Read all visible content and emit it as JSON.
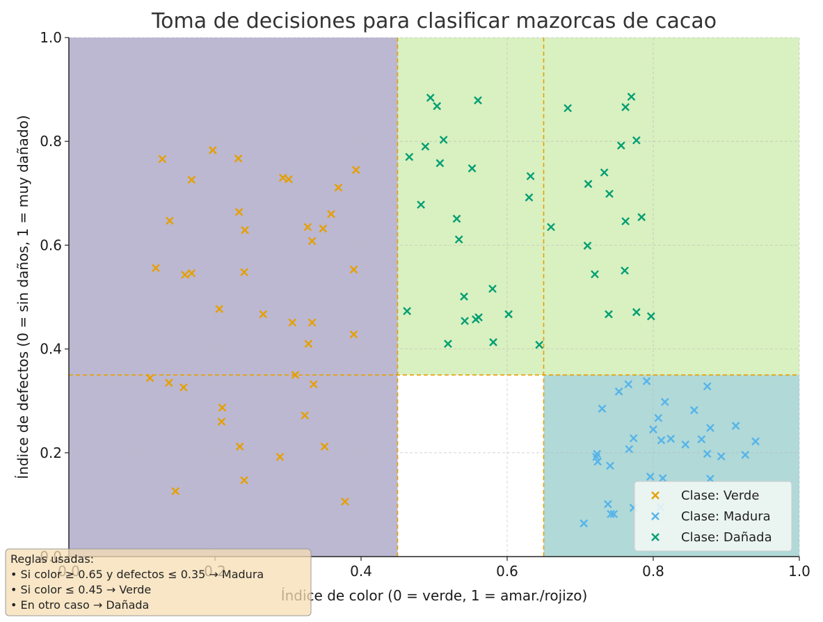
{
  "chart_data": {
    "type": "scatter",
    "title": "Toma de decisiones para clasificar mazorcas de cacao",
    "xlabel": "Índice de color (0 = verde, 1 = amar./rojizo)",
    "ylabel": "Índice de defectos (0 = sin daños, 1 = muy dañado)",
    "xlim": [
      0,
      1
    ],
    "ylim": [
      0,
      1
    ],
    "xticks": [
      "0.0",
      "0.2",
      "0.4",
      "0.6",
      "0.8",
      "1.0"
    ],
    "yticks": [
      "0.0",
      "0.2",
      "0.4",
      "0.6",
      "0.8",
      "1.0"
    ],
    "grid": true,
    "legend_position": "bottom-right",
    "thresholds": {
      "color_verde": 0.45,
      "color_madura": 0.65,
      "defectos": 0.35
    },
    "regions": [
      {
        "name": "Verde",
        "x": [
          0,
          0.45
        ],
        "y": [
          0,
          1
        ],
        "color": "#bcb8d2"
      },
      {
        "name": "Dañada",
        "x": [
          0.45,
          1
        ],
        "y": [
          0.35,
          1
        ],
        "color": "#d9f0c0"
      },
      {
        "name": "Madura",
        "x": [
          0.65,
          1
        ],
        "y": [
          0,
          0.35
        ],
        "color": "#b0d9d8"
      }
    ],
    "series": [
      {
        "name": "Clase: Verde",
        "color": "#e69f00",
        "marker": "x",
        "points": [
          [
            0.128,
            0.766
          ],
          [
            0.197,
            0.783
          ],
          [
            0.232,
            0.767
          ],
          [
            0.168,
            0.726
          ],
          [
            0.293,
            0.73
          ],
          [
            0.301,
            0.727
          ],
          [
            0.393,
            0.745
          ],
          [
            0.369,
            0.711
          ],
          [
            0.138,
            0.647
          ],
          [
            0.233,
            0.664
          ],
          [
            0.241,
            0.629
          ],
          [
            0.359,
            0.66
          ],
          [
            0.327,
            0.635
          ],
          [
            0.348,
            0.632
          ],
          [
            0.333,
            0.608
          ],
          [
            0.119,
            0.556
          ],
          [
            0.159,
            0.543
          ],
          [
            0.168,
            0.546
          ],
          [
            0.24,
            0.548
          ],
          [
            0.39,
            0.553
          ],
          [
            0.206,
            0.477
          ],
          [
            0.266,
            0.467
          ],
          [
            0.306,
            0.451
          ],
          [
            0.333,
            0.451
          ],
          [
            0.328,
            0.41
          ],
          [
            0.39,
            0.428
          ],
          [
            0.31,
            0.35
          ],
          [
            0.111,
            0.344
          ],
          [
            0.137,
            0.335
          ],
          [
            0.157,
            0.326
          ],
          [
            0.335,
            0.332
          ],
          [
            0.21,
            0.287
          ],
          [
            0.209,
            0.26
          ],
          [
            0.323,
            0.272
          ],
          [
            0.234,
            0.212
          ],
          [
            0.35,
            0.212
          ],
          [
            0.289,
            0.192
          ],
          [
            0.24,
            0.147
          ],
          [
            0.146,
            0.126
          ],
          [
            0.378,
            0.106
          ]
        ]
      },
      {
        "name": "Clase: Madura",
        "color": "#56b4e9",
        "marker": "x",
        "points": [
          [
            0.766,
            0.332
          ],
          [
            0.791,
            0.338
          ],
          [
            0.874,
            0.328
          ],
          [
            0.753,
            0.318
          ],
          [
            0.73,
            0.285
          ],
          [
            0.816,
            0.298
          ],
          [
            0.856,
            0.282
          ],
          [
            0.807,
            0.267
          ],
          [
            0.8,
            0.245
          ],
          [
            0.878,
            0.248
          ],
          [
            0.913,
            0.252
          ],
          [
            0.773,
            0.228
          ],
          [
            0.811,
            0.224
          ],
          [
            0.824,
            0.227
          ],
          [
            0.866,
            0.226
          ],
          [
            0.94,
            0.222
          ],
          [
            0.844,
            0.216
          ],
          [
            0.767,
            0.207
          ],
          [
            0.723,
            0.198
          ],
          [
            0.722,
            0.192
          ],
          [
            0.724,
            0.183
          ],
          [
            0.874,
            0.198
          ],
          [
            0.893,
            0.193
          ],
          [
            0.926,
            0.196
          ],
          [
            0.741,
            0.175
          ],
          [
            0.796,
            0.154
          ],
          [
            0.813,
            0.151
          ],
          [
            0.878,
            0.15
          ],
          [
            0.738,
            0.101
          ],
          [
            0.773,
            0.094
          ],
          [
            0.81,
            0.095
          ],
          [
            0.742,
            0.082
          ],
          [
            0.746,
            0.082
          ],
          [
            0.705,
            0.064
          ]
        ]
      },
      {
        "name": "Clase: Dañada",
        "color": "#009e73",
        "marker": "x",
        "points": [
          [
            0.495,
            0.884
          ],
          [
            0.504,
            0.868
          ],
          [
            0.56,
            0.879
          ],
          [
            0.683,
            0.864
          ],
          [
            0.762,
            0.866
          ],
          [
            0.77,
            0.886
          ],
          [
            0.513,
            0.803
          ],
          [
            0.488,
            0.79
          ],
          [
            0.756,
            0.792
          ],
          [
            0.777,
            0.802
          ],
          [
            0.466,
            0.77
          ],
          [
            0.508,
            0.758
          ],
          [
            0.552,
            0.748
          ],
          [
            0.632,
            0.733
          ],
          [
            0.733,
            0.74
          ],
          [
            0.711,
            0.718
          ],
          [
            0.74,
            0.699
          ],
          [
            0.482,
            0.678
          ],
          [
            0.63,
            0.692
          ],
          [
            0.531,
            0.651
          ],
          [
            0.762,
            0.646
          ],
          [
            0.784,
            0.654
          ],
          [
            0.66,
            0.635
          ],
          [
            0.534,
            0.611
          ],
          [
            0.71,
            0.599
          ],
          [
            0.72,
            0.544
          ],
          [
            0.761,
            0.551
          ],
          [
            0.58,
            0.516
          ],
          [
            0.541,
            0.501
          ],
          [
            0.463,
            0.473
          ],
          [
            0.542,
            0.454
          ],
          [
            0.557,
            0.457
          ],
          [
            0.561,
            0.461
          ],
          [
            0.602,
            0.467
          ],
          [
            0.739,
            0.467
          ],
          [
            0.777,
            0.471
          ],
          [
            0.797,
            0.463
          ],
          [
            0.519,
            0.41
          ],
          [
            0.581,
            0.413
          ],
          [
            0.644,
            0.408
          ]
        ]
      }
    ],
    "annotation": {
      "lines": [
        "Reglas usadas:",
        "• Si color ≥ 0.65 y defectos ≤ 0.35 → Madura",
        "• Si color ≤ 0.45 → Verde",
        "• En otro caso → Dañada"
      ],
      "color": "#f5deb3"
    },
    "colors": {
      "threshold_line": "#e69f00",
      "axis": "#222222",
      "grid": "#b8b8b8"
    }
  }
}
